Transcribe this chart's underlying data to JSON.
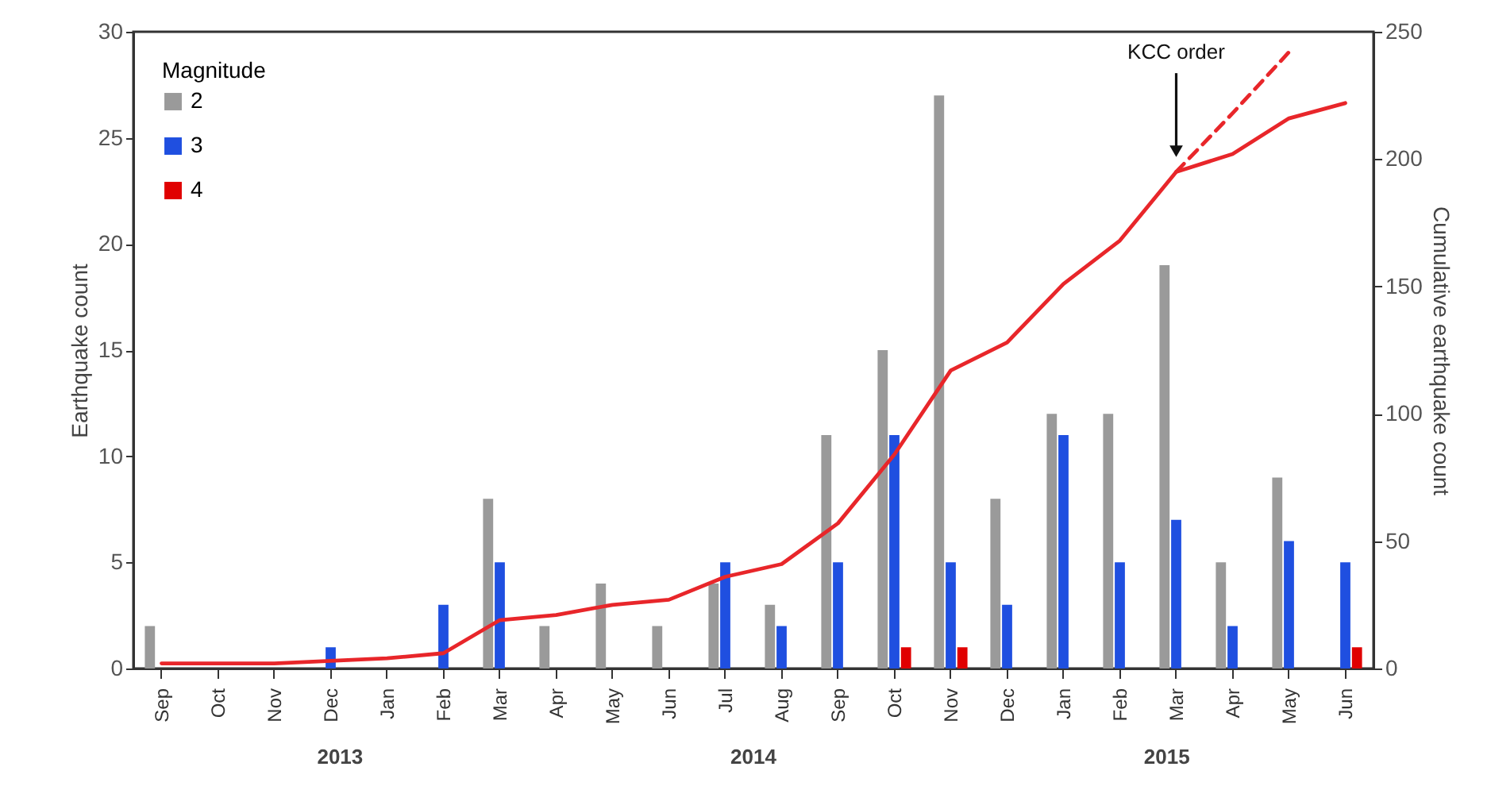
{
  "chart_data": {
    "type": "bar",
    "categories": [
      "Sep",
      "Oct",
      "Nov",
      "Dec",
      "Jan",
      "Feb",
      "Mar",
      "Apr",
      "May",
      "Jun",
      "Jul",
      "Aug",
      "Sep",
      "Oct",
      "Nov",
      "Dec",
      "Jan",
      "Feb",
      "Mar",
      "Apr",
      "May",
      "Jun"
    ],
    "series": [
      {
        "name": "2",
        "color": "#9a9a9a",
        "values": [
          2,
          0,
          0,
          0,
          0,
          0,
          8,
          2,
          4,
          2,
          4,
          3,
          11,
          15,
          27,
          8,
          12,
          12,
          19,
          5,
          9,
          0
        ]
      },
      {
        "name": "3",
        "color": "#1f4fe0",
        "values": [
          0,
          0,
          0,
          1,
          0,
          3,
          5,
          0,
          0,
          0,
          5,
          2,
          5,
          11,
          5,
          3,
          11,
          5,
          7,
          2,
          6,
          5
        ]
      },
      {
        "name": "4",
        "color": "#e00000",
        "values": [
          0,
          0,
          0,
          0,
          0,
          0,
          0,
          0,
          0,
          0,
          0,
          0,
          0,
          1,
          1,
          0,
          0,
          0,
          0,
          0,
          0,
          1
        ]
      },
      {
        "type": "line",
        "axis": "y2",
        "color": "#e8262a",
        "values": [
          2,
          2,
          2,
          3,
          4,
          6,
          19,
          21,
          25,
          27,
          36,
          41,
          57,
          84,
          117,
          128,
          151,
          168,
          195,
          202,
          216,
          222
        ]
      },
      {
        "type": "line",
        "axis": "y2",
        "color": "#e8262a",
        "line_style": "dashed",
        "values": [
          null,
          null,
          null,
          null,
          null,
          null,
          null,
          null,
          null,
          null,
          null,
          null,
          null,
          null,
          null,
          null,
          null,
          null,
          195,
          218,
          242,
          null
        ]
      }
    ],
    "ylabel": "Earthquake count",
    "y2label": "Cumulative earthquake count",
    "ylim": [
      0,
      30
    ],
    "yticks": [
      0,
      5,
      10,
      15,
      20,
      25,
      30
    ],
    "y2lim": [
      0,
      250
    ],
    "y2ticks": [
      0,
      50,
      100,
      150,
      200,
      250
    ],
    "legend_title": "Magnitude",
    "legend": "top left",
    "grid": false,
    "annotations": [
      "2013",
      "2014",
      "2015",
      "KCC order"
    ]
  }
}
